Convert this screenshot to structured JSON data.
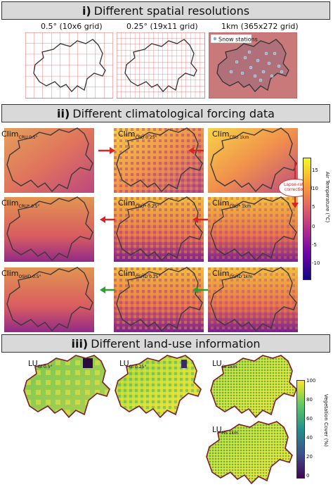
{
  "sections": {
    "s1": {
      "num": "i)",
      "title": "Different spatial resolutions"
    },
    "s2": {
      "num": "ii)",
      "title": "Different climatological forcing data"
    },
    "s3": {
      "num": "iii)",
      "title": "Different land-use information"
    }
  },
  "grids": {
    "g1": "0.5° (10x6 grid)",
    "g2": "0.25° (19x11 grid)",
    "g3": "1km (365x272 grid)",
    "legend": "Snow stations"
  },
  "clim": {
    "base": "Clim",
    "r1": [
      "CRU 0.5°",
      "CRU 0.25°",
      "CRU 1km"
    ],
    "r2": [
      "CRU* 0.5°",
      "CRU* 0.25°",
      "CRU* 1km"
    ],
    "r3": [
      "OSHD 0.5°",
      "OSHD 0.25°",
      "OSHD 1km"
    ]
  },
  "lapse": "Lapse-rate correction",
  "lu": {
    "base": "LU",
    "subs": [
      "GI 0.5°",
      "GI 0.25°",
      "GI 1km",
      "HS 1km"
    ]
  },
  "colorbar_temp": {
    "label": "Air Temperature (°C)",
    "ticks": [
      "15",
      "10",
      "5",
      "0",
      "-5",
      "-10"
    ],
    "colors": [
      "#f0f921",
      "#fca636",
      "#e16462",
      "#b12a90",
      "#6a00a8",
      "#0d0887"
    ]
  },
  "colorbar_veg": {
    "label": "Vegetation Cover (%)",
    "ticks": [
      "100",
      "80",
      "60",
      "40",
      "20",
      "0"
    ],
    "colors": [
      "#fde725",
      "#5ec962",
      "#21918c",
      "#3b528b",
      "#440154"
    ]
  },
  "arrow_colors": {
    "red": "#d62728",
    "green": "#2ca02c"
  }
}
